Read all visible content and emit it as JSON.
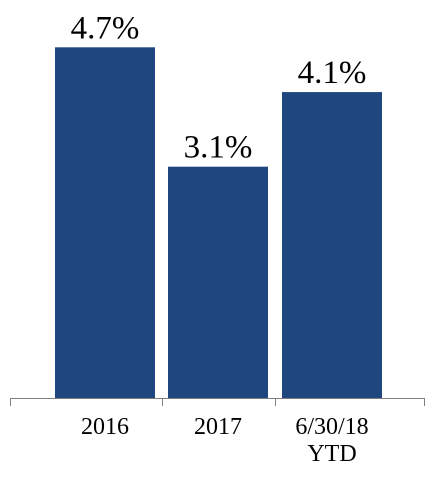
{
  "chart_data": {
    "type": "bar",
    "title": "",
    "xlabel": "",
    "ylabel": "",
    "categories": [
      [
        "2016"
      ],
      [
        "2017"
      ],
      [
        "6/30/18",
        "YTD"
      ]
    ],
    "values": [
      4.7,
      3.1,
      4.1
    ],
    "value_labels": [
      "4.7%",
      "3.1%",
      "4.1%"
    ],
    "ylim": [
      0,
      5.2
    ],
    "grid": false,
    "legend": "none",
    "colors": {
      "bar": "#1f467e",
      "axis": "#808080",
      "text": "#000000"
    }
  }
}
